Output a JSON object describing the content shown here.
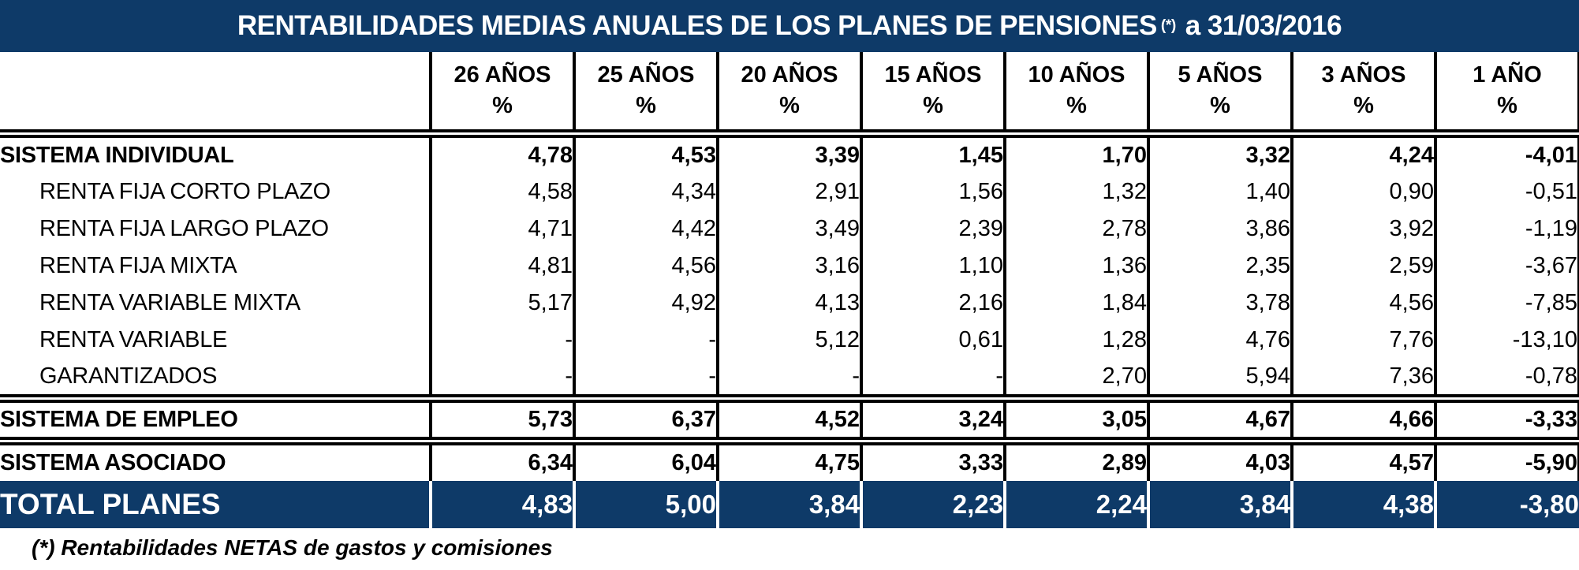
{
  "title": {
    "text": "RENTABILIDADES MEDIAS ANUALES DE LOS PLANES DE PENSIONES",
    "marker": "(*)",
    "date_suffix": "a 31/03/2016"
  },
  "colors": {
    "navy": "#0e3a68",
    "header_text": "#ffffff",
    "body_text": "#000000"
  },
  "table": {
    "columns": [
      "26 AÑOS",
      "25 AÑOS",
      "20 AÑOS",
      "15 AÑOS",
      "10 AÑOS",
      "5 AÑOS",
      "3 AÑOS",
      "1 AÑO"
    ],
    "unit": "%",
    "rows": [
      {
        "label": "SISTEMA INDIVIDUAL",
        "style": "section",
        "separator_before": true,
        "values": [
          "4,78",
          "4,53",
          "3,39",
          "1,45",
          "1,70",
          "3,32",
          "4,24",
          "-4,01"
        ]
      },
      {
        "label": "RENTA FIJA CORTO PLAZO",
        "style": "sub",
        "separator_before": false,
        "values": [
          "4,58",
          "4,34",
          "2,91",
          "1,56",
          "1,32",
          "1,40",
          "0,90",
          "-0,51"
        ]
      },
      {
        "label": "RENTA FIJA LARGO PLAZO",
        "style": "sub",
        "separator_before": false,
        "values": [
          "4,71",
          "4,42",
          "3,49",
          "2,39",
          "2,78",
          "3,86",
          "3,92",
          "-1,19"
        ]
      },
      {
        "label": "RENTA FIJA MIXTA",
        "style": "sub",
        "separator_before": false,
        "values": [
          "4,81",
          "4,56",
          "3,16",
          "1,10",
          "1,36",
          "2,35",
          "2,59",
          "-3,67"
        ]
      },
      {
        "label": "RENTA VARIABLE MIXTA",
        "style": "sub",
        "separator_before": false,
        "values": [
          "5,17",
          "4,92",
          "4,13",
          "2,16",
          "1,84",
          "3,78",
          "4,56",
          "-7,85"
        ]
      },
      {
        "label": "RENTA VARIABLE",
        "style": "sub",
        "separator_before": false,
        "values": [
          "-",
          "-",
          "5,12",
          "0,61",
          "1,28",
          "4,76",
          "7,76",
          "-13,10"
        ]
      },
      {
        "label": "GARANTIZADOS",
        "style": "sub",
        "separator_before": false,
        "values": [
          "-",
          "-",
          "-",
          "-",
          "2,70",
          "5,94",
          "7,36",
          "-0,78"
        ]
      },
      {
        "label": "SISTEMA DE EMPLEO",
        "style": "section",
        "separator_before": true,
        "values": [
          "5,73",
          "6,37",
          "4,52",
          "3,24",
          "3,05",
          "4,67",
          "4,66",
          "-3,33"
        ]
      },
      {
        "label": "SISTEMA ASOCIADO",
        "style": "section",
        "separator_before": true,
        "values": [
          "6,34",
          "6,04",
          "4,75",
          "3,33",
          "2,89",
          "4,03",
          "4,57",
          "-5,90"
        ]
      },
      {
        "label": "TOTAL PLANES",
        "style": "total",
        "separator_before": false,
        "values": [
          "4,83",
          "5,00",
          "3,84",
          "2,23",
          "2,24",
          "3,84",
          "4,38",
          "-3,80"
        ]
      }
    ]
  },
  "footnote": "(*) Rentabilidades NETAS de gastos y comisiones",
  "chart_data": {
    "type": "table",
    "title": "RENTABILIDADES MEDIAS ANUALES DE LOS PLANES DE PENSIONES (*) a 31/03/2016",
    "columns": [
      "26 AÑOS %",
      "25 AÑOS %",
      "20 AÑOS %",
      "15 AÑOS %",
      "10 AÑOS %",
      "5 AÑOS %",
      "3 AÑOS %",
      "1 AÑO %"
    ],
    "rows": [
      {
        "label": "SISTEMA INDIVIDUAL",
        "values": [
          4.78,
          4.53,
          3.39,
          1.45,
          1.7,
          3.32,
          4.24,
          -4.01
        ]
      },
      {
        "label": "RENTA FIJA CORTO PLAZO",
        "values": [
          4.58,
          4.34,
          2.91,
          1.56,
          1.32,
          1.4,
          0.9,
          -0.51
        ]
      },
      {
        "label": "RENTA FIJA LARGO PLAZO",
        "values": [
          4.71,
          4.42,
          3.49,
          2.39,
          2.78,
          3.86,
          3.92,
          -1.19
        ]
      },
      {
        "label": "RENTA FIJA MIXTA",
        "values": [
          4.81,
          4.56,
          3.16,
          1.1,
          1.36,
          2.35,
          2.59,
          -3.67
        ]
      },
      {
        "label": "RENTA VARIABLE MIXTA",
        "values": [
          5.17,
          4.92,
          4.13,
          2.16,
          1.84,
          3.78,
          4.56,
          -7.85
        ]
      },
      {
        "label": "RENTA VARIABLE",
        "values": [
          null,
          null,
          5.12,
          0.61,
          1.28,
          4.76,
          7.76,
          -13.1
        ]
      },
      {
        "label": "GARANTIZADOS",
        "values": [
          null,
          null,
          null,
          null,
          2.7,
          5.94,
          7.36,
          -0.78
        ]
      },
      {
        "label": "SISTEMA DE EMPLEO",
        "values": [
          5.73,
          6.37,
          4.52,
          3.24,
          3.05,
          4.67,
          4.66,
          -3.33
        ]
      },
      {
        "label": "SISTEMA ASOCIADO",
        "values": [
          6.34,
          6.04,
          4.75,
          3.33,
          2.89,
          4.03,
          4.57,
          -5.9
        ]
      },
      {
        "label": "TOTAL PLANES",
        "values": [
          4.83,
          5.0,
          3.84,
          2.23,
          2.24,
          3.84,
          4.38,
          -3.8
        ]
      }
    ],
    "footnote": "(*) Rentabilidades NETAS de gastos y comisiones",
    "notes": "null values are shown as '-' dashes in the table"
  }
}
